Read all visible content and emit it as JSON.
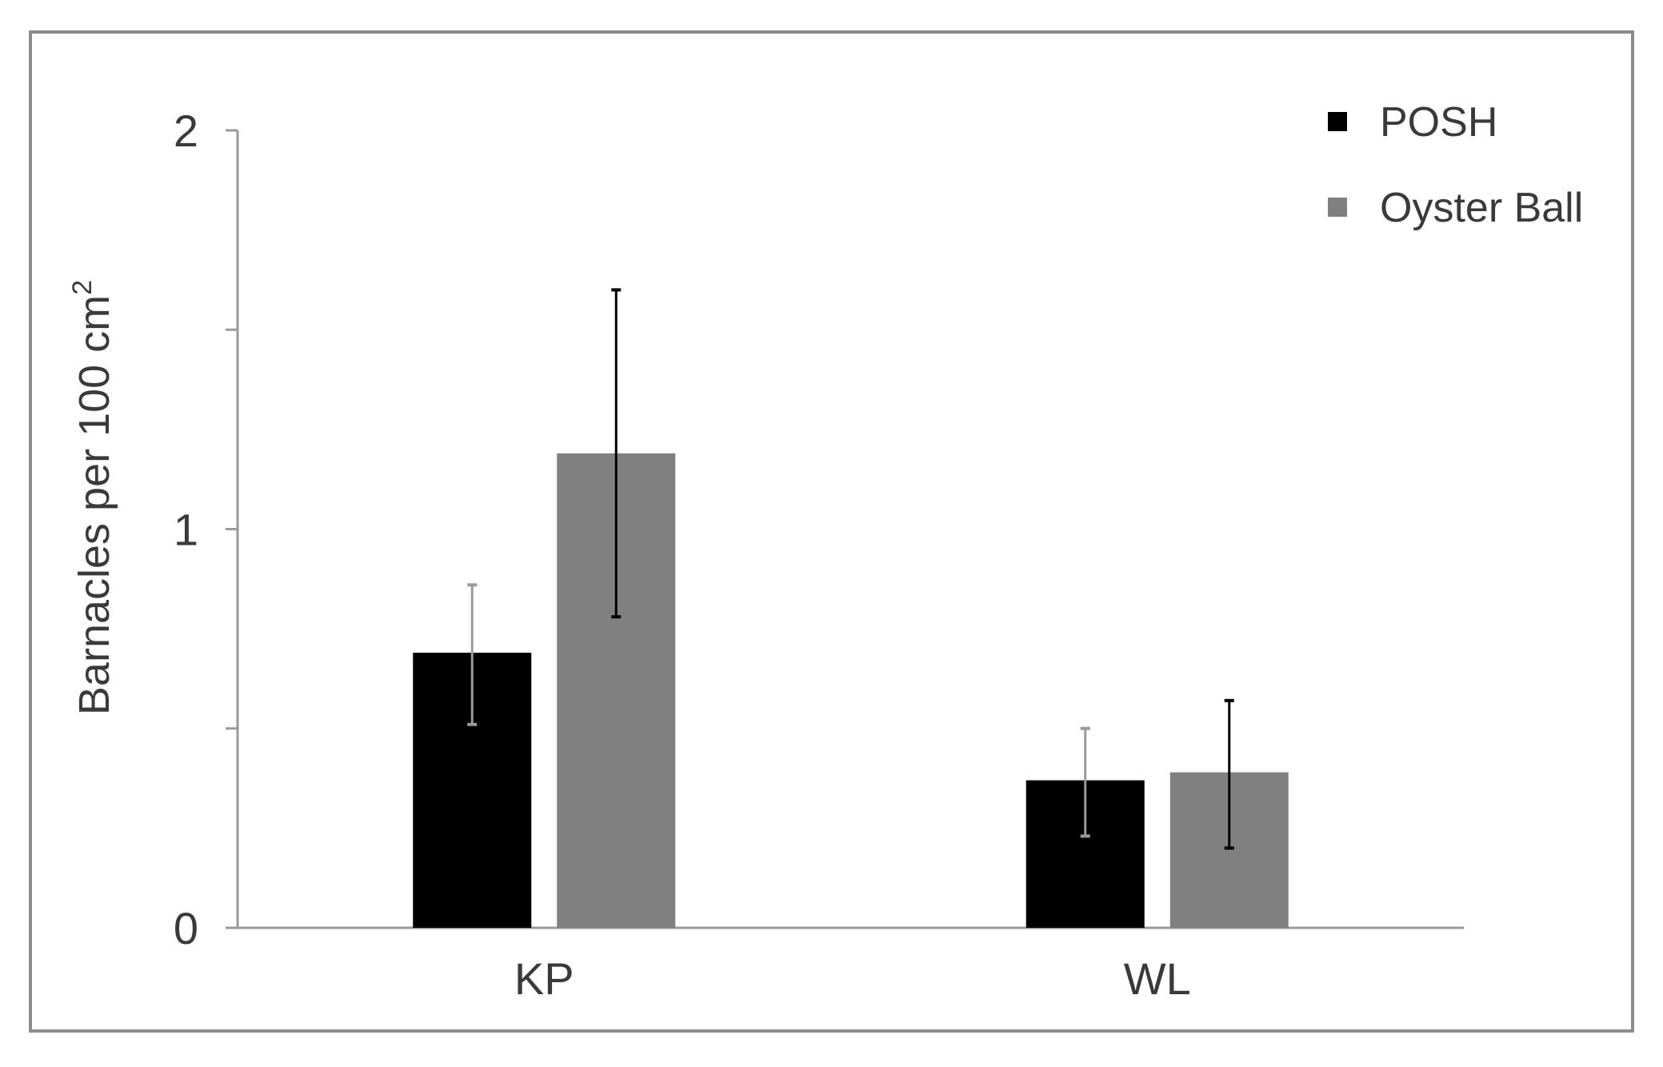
{
  "chart_data": {
    "type": "bar",
    "title": "",
    "xlabel": "",
    "ylabel": "Barnacles per 100 cm",
    "ylabel_superscript": "2",
    "ylim": [
      0,
      2
    ],
    "yticks": [
      0,
      1,
      2
    ],
    "yticks_minor": [
      0.5,
      1.5
    ],
    "categories": [
      "KP",
      "WL"
    ],
    "series": [
      {
        "name": "POSH",
        "color": "#000000",
        "values": [
          0.69,
          0.37
        ],
        "error_low": [
          0.51,
          0.23
        ],
        "error_high": [
          0.86,
          0.5
        ],
        "error_color": "#9a9a9a"
      },
      {
        "name": "Oyster Ball",
        "color": "#808080",
        "values": [
          1.19,
          0.39
        ],
        "error_low": [
          0.78,
          0.2
        ],
        "error_high": [
          1.6,
          0.57
        ],
        "error_color": "#000000"
      }
    ],
    "legend": {
      "placement": "top-right"
    },
    "grid": false
  }
}
